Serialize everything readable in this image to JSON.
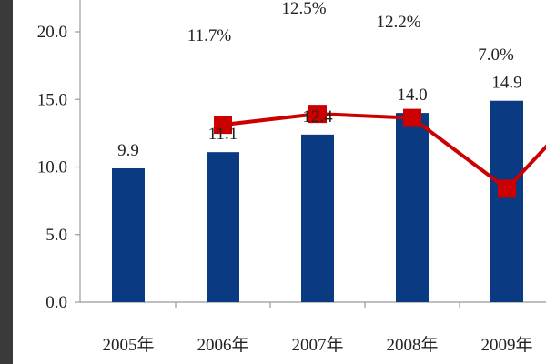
{
  "chart_data": {
    "type": "bar",
    "title": "",
    "xlabel": "",
    "ylabel": "",
    "categories": [
      "2005年",
      "2006年",
      "2007年",
      "2008年",
      "2009年"
    ],
    "ylim": [
      0,
      20
    ],
    "yticks": [
      "0.0",
      "5.0",
      "10.0",
      "15.0",
      "20.0"
    ],
    "grid": false,
    "legend": "none",
    "series": [
      {
        "type": "bar",
        "values": [
          9.9,
          11.1,
          12.4,
          14.0,
          14.9
        ],
        "labels": [
          "9.9",
          "11.1",
          "12.4",
          "14.0",
          "14.9"
        ],
        "color": "#0a3a82"
      },
      {
        "type": "line",
        "values": [
          null,
          11.7,
          12.5,
          12.2,
          7.0
        ],
        "labels": [
          "",
          "11.7%",
          "12.5%",
          "12.2%",
          "7.0%"
        ],
        "color": "#cc0000",
        "marker": "square",
        "continues_right": true
      }
    ]
  },
  "colors": {
    "left_strip": "#3a3a3a",
    "axis": "#999999",
    "text": "#222222"
  }
}
